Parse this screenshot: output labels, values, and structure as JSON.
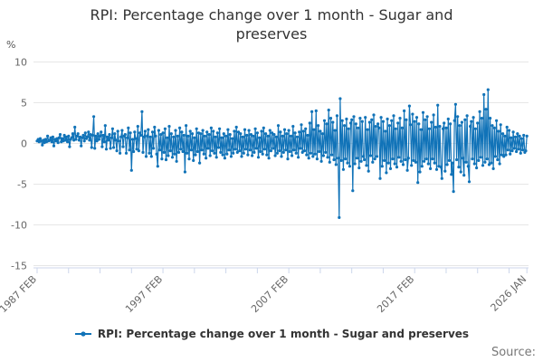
{
  "title": {
    "text": "RPI: Percentage change over 1 month - Sugar and preserves"
  },
  "y_axis_unit": "%",
  "legend": {
    "label": "RPI: Percentage change over 1 month - Sugar and preserves"
  },
  "source_label": "Source:",
  "chart_data": {
    "type": "line",
    "series_name": "RPI: Percentage change over 1 month - Sugar and preserves",
    "frequency": "monthly",
    "x_start": "1987 FEB",
    "x_end": "2026 JAN",
    "ylabel": "%",
    "ylim": [
      -15,
      10
    ],
    "yticks": [
      10,
      5,
      0,
      -5,
      -10,
      -15
    ],
    "xticks": [
      {
        "label": "1987 FEB",
        "month": 0
      },
      {
        "label": "1997 FEB",
        "month": 120
      },
      {
        "label": "2007 FEB",
        "month": 240
      },
      {
        "label": "2017 FEB",
        "month": 360
      },
      {
        "label": "2026 JAN",
        "month": 467
      }
    ],
    "minor_tick_interval_months": 30,
    "grid_on": true,
    "legend_position": "bottom",
    "line_color": "#1173b8",
    "grid_color": "#e6e6e6",
    "axis_color": "#ccd6eb",
    "tick_label_color": "#666666",
    "values": [
      0.3,
      0.5,
      0.2,
      0.6,
      0.3,
      -0.2,
      0.4,
      0.1,
      0.5,
      0.2,
      0.9,
      0.3,
      0.4,
      0.7,
      0.2,
      0.8,
      -0.3,
      0.5,
      0.3,
      0.6,
      0.1,
      0.7,
      1.1,
      0.2,
      0.6,
      0.3,
      1.0,
      0.4,
      0.8,
      0.2,
      0.9,
      -0.4,
      0.5,
      0.7,
      1.2,
      0.4,
      2.0,
      0.5,
      0.9,
      1.2,
      0.4,
      0.8,
      -0.3,
      0.7,
      1.0,
      0.3,
      1.3,
      0.6,
      0.8,
      1.4,
      0.4,
      1.1,
      -0.5,
      1.0,
      3.3,
      -0.6,
      0.9,
      0.3,
      1.2,
      0.5,
      0.9,
      1.4,
      -0.4,
      1.0,
      0.2,
      2.2,
      -0.7,
      0.8,
      0.4,
      1.1,
      -0.6,
      0.7,
      1.8,
      -0.5,
      1.2,
      0.4,
      -0.9,
      1.5,
      0.3,
      -1.2,
      0.8,
      1.6,
      -0.4,
      0.9,
      1.1,
      -1.2,
      0.7,
      1.9,
      -0.8,
      1.3,
      -3.3,
      0.5,
      -1.0,
      1.4,
      0.6,
      -0.7,
      2.1,
      -0.9,
      1.3,
      1.0,
      3.9,
      -1.1,
      0.8,
      1.5,
      -1.6,
      0.9,
      1.7,
      -1.2,
      0.8,
      -1.6,
      1.4,
      -0.6,
      2.0,
      0.9,
      -1.3,
      -2.8,
      1.6,
      -0.8,
      1.1,
      -1.9,
      1.3,
      -1.1,
      1.8,
      -2.0,
      0.7,
      -1.5,
      2.1,
      -0.9,
      1.2,
      -1.7,
      0.8,
      -1.3,
      1.6,
      -2.2,
      0.9,
      -1.1,
      1.9,
      -0.7,
      1.4,
      -1.0,
      1.0,
      -3.5,
      2.2,
      -1.2,
      0.9,
      -1.9,
      1.5,
      -0.8,
      1.2,
      -2.1,
      0.7,
      -1.4,
      1.8,
      -1.0,
      1.3,
      -2.4,
      1.2,
      -0.8,
      1.6,
      -1.3,
      0.9,
      -1.8,
      1.4,
      -0.6,
      1.1,
      -1.5,
      1.9,
      -0.9,
      1.5,
      -1.2,
      0.8,
      -1.7,
      1.3,
      -0.5,
      1.8,
      -1.1,
      0.7,
      -1.4,
      1.2,
      -1.8,
      0.9,
      -1.3,
      1.7,
      -0.8,
      1.1,
      -1.6,
      0.6,
      -1.2,
      1.5,
      -0.7,
      2.0,
      -1.1,
      1.4,
      -0.9,
      1.2,
      -1.6,
      0.8,
      -1.2,
      1.7,
      -0.7,
      1.0,
      -1.4,
      1.6,
      -0.8,
      1.1,
      -1.5,
      0.9,
      -1.1,
      1.8,
      -0.6,
      1.3,
      -1.7,
      0.7,
      -1.0,
      1.5,
      -1.3,
      1.9,
      -0.7,
      1.2,
      -1.4,
      0.9,
      -1.8,
      1.6,
      -0.9,
      1.3,
      -0.6,
      1.1,
      -1.5,
      0.8,
      -1.2,
      2.2,
      -0.9,
      1.4,
      -1.6,
      0.9,
      -1.1,
      1.7,
      -0.8,
      1.2,
      -1.9,
      1.6,
      -1.0,
      0.9,
      -1.5,
      2.1,
      -0.8,
      1.3,
      -1.2,
      0.8,
      -1.7,
      1.4,
      -0.6,
      2.3,
      -1.1,
      1.5,
      -0.9,
      1.8,
      -1.4,
      1.0,
      -1.8,
      2.5,
      -1.2,
      3.9,
      -1.6,
      1.7,
      -1.3,
      4.0,
      -1.9,
      2.2,
      -1.0,
      1.5,
      -2.2,
      1.2,
      -1.5,
      2.8,
      -1.1,
      2.4,
      -1.7,
      4.1,
      -2.3,
      3.1,
      -1.4,
      2.6,
      -2.0,
      1.6,
      -2.6,
      3.4,
      -1.8,
      -9.1,
      5.5,
      -2.1,
      2.8,
      -3.2,
      2.2,
      -1.9,
      3.0,
      -2.4,
      1.8,
      -2.8,
      2.5,
      2.9,
      -5.8,
      3.3,
      -2.5,
      2.4,
      -1.8,
      1.9,
      -3.0,
      3.1,
      -2.2,
      2.7,
      -1.6,
      -2.0,
      3.2,
      -2.7,
      1.7,
      -3.4,
      2.6,
      -1.5,
      2.9,
      -2.3,
      3.5,
      -1.9,
      2.1,
      -1.6,
      2.4,
      1.9,
      -4.3,
      3.2,
      -2.8,
      2.7,
      -2.1,
      1.5,
      -3.6,
      3.0,
      -2.4,
      2.2,
      -3.1,
      2.8,
      -1.9,
      3.4,
      -2.5,
      1.8,
      -2.9,
      2.5,
      -1.7,
      3.1,
      -2.2,
      1.9,
      -2.6,
      4.0,
      -2.0,
      2.9,
      -3.3,
      -1.8,
      4.6,
      2.3,
      -2.7,
      3.6,
      -2.1,
      2.7,
      -2.3,
      3.2,
      -4.8,
      2.4,
      -3.5,
      1.7,
      -2.8,
      3.8,
      -2.2,
      2.9,
      -1.9,
      3.3,
      -2.5,
      1.8,
      -3.1,
      2.6,
      -1.9,
      3.5,
      -2.4,
      2.0,
      -3.2,
      4.7,
      -2.8,
      2.1,
      -2.9,
      -4.3,
      1.8,
      2.5,
      -3.4,
      1.9,
      -2.6,
      3.0,
      -2.1,
      2.4,
      -3.8,
      -2.4,
      -5.9,
      2.8,
      4.8,
      -2.0,
      3.3,
      -2.9,
      2.2,
      -3.5,
      2.6,
      -1.8,
      -3.9,
      2.9,
      -2.3,
      3.4,
      -2.8,
      -4.7,
      2.1,
      2.7,
      -1.9,
      3.2,
      -2.5,
      1.8,
      -3.0,
      2.5,
      -2.1,
      3.9,
      -1.7,
      3.1,
      -2.7,
      6.0,
      -2.3,
      4.2,
      -1.9,
      6.6,
      -2.6,
      3.1,
      -2.4,
      2.2,
      -3.1,
      1.9,
      -1.6,
      2.8,
      -2.0,
      1.5,
      -2.5,
      2.3,
      -1.4,
      1.2,
      -1.6,
      0.9,
      -1.4,
      2.0,
      -0.8,
      1.6,
      -1.3,
      0.7,
      -0.9,
      1.4,
      -0.6,
      0.8,
      -1.0,
      1.2,
      -0.7,
      0.9,
      -1.2,
      0.6,
      -0.8,
      1.0,
      -1.1,
      -0.9,
      0.9
    ]
  }
}
